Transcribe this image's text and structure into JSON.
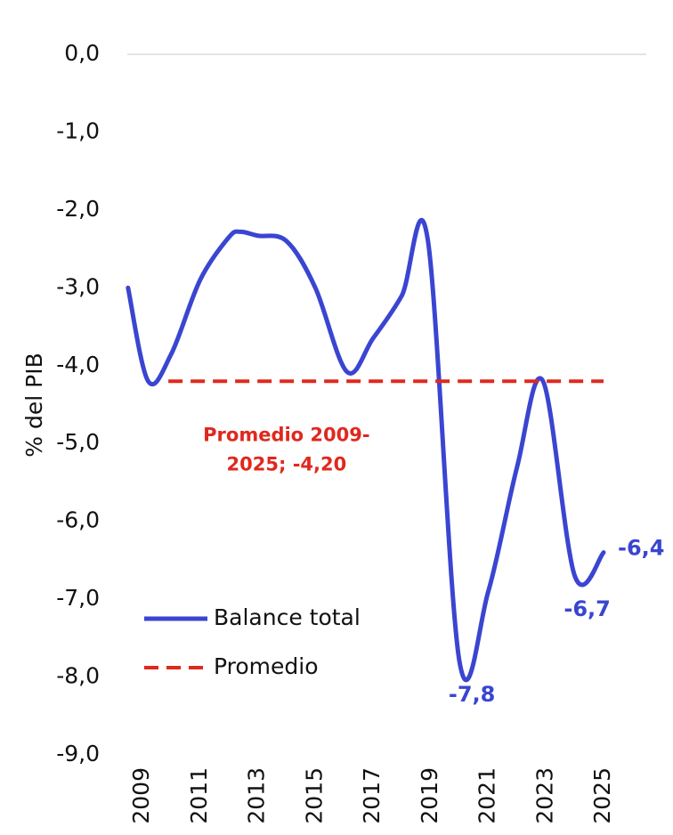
{
  "chart_data": {
    "type": "line",
    "ylabel": "% del PIB",
    "xlim": [
      2008.5,
      2025
    ],
    "xticks": [
      2009,
      2011,
      2013,
      2015,
      2017,
      2019,
      2021,
      2023,
      2025
    ],
    "ylim": [
      -9,
      0
    ],
    "yticks": [
      {
        "value": 0,
        "label": "0,0"
      },
      {
        "value": -1,
        "label": "-1,0"
      },
      {
        "value": -2,
        "label": "-2,0"
      },
      {
        "value": -3,
        "label": "-3,0"
      },
      {
        "value": -4,
        "label": "-4,0"
      },
      {
        "value": -5,
        "label": "-5,0"
      },
      {
        "value": -6,
        "label": "-6,0"
      },
      {
        "value": -7,
        "label": "-7,0"
      },
      {
        "value": -8,
        "label": "-8,0"
      },
      {
        "value": -9,
        "label": "-9,0"
      }
    ],
    "legend": "lower left",
    "series": [
      {
        "name": "Balance total",
        "color": "#3a45d1",
        "dash": false,
        "x": [
          2008.5,
          2009.2,
          2010,
          2011,
          2012,
          2012.4,
          2013,
          2014,
          2015,
          2016.1,
          2017,
          2018,
          2018.9,
          2020,
          2021,
          2022,
          2022.9,
          2024,
          2025
        ],
        "values": [
          -3.0,
          -4.2,
          -3.85,
          -2.9,
          -2.35,
          -2.28,
          -2.33,
          -2.4,
          -3.0,
          -4.08,
          -3.65,
          -3.1,
          -2.38,
          -7.8,
          -6.9,
          -5.3,
          -4.2,
          -6.7,
          -6.4
        ],
        "value_labels": [
          null,
          null,
          null,
          null,
          null,
          null,
          null,
          null,
          null,
          null,
          null,
          null,
          null,
          "-7,8",
          null,
          null,
          null,
          "-6,7",
          "-6,4"
        ]
      },
      {
        "name": "Promedio",
        "color": "#e0281e",
        "dash": true,
        "x": [
          2009.9,
          2025
        ],
        "values": [
          -4.2,
          -4.2
        ]
      }
    ],
    "annotation": {
      "lines": [
        "Promedio 2009-",
        "2025; -4,20"
      ],
      "x": 2014,
      "y": -4.9
    }
  }
}
